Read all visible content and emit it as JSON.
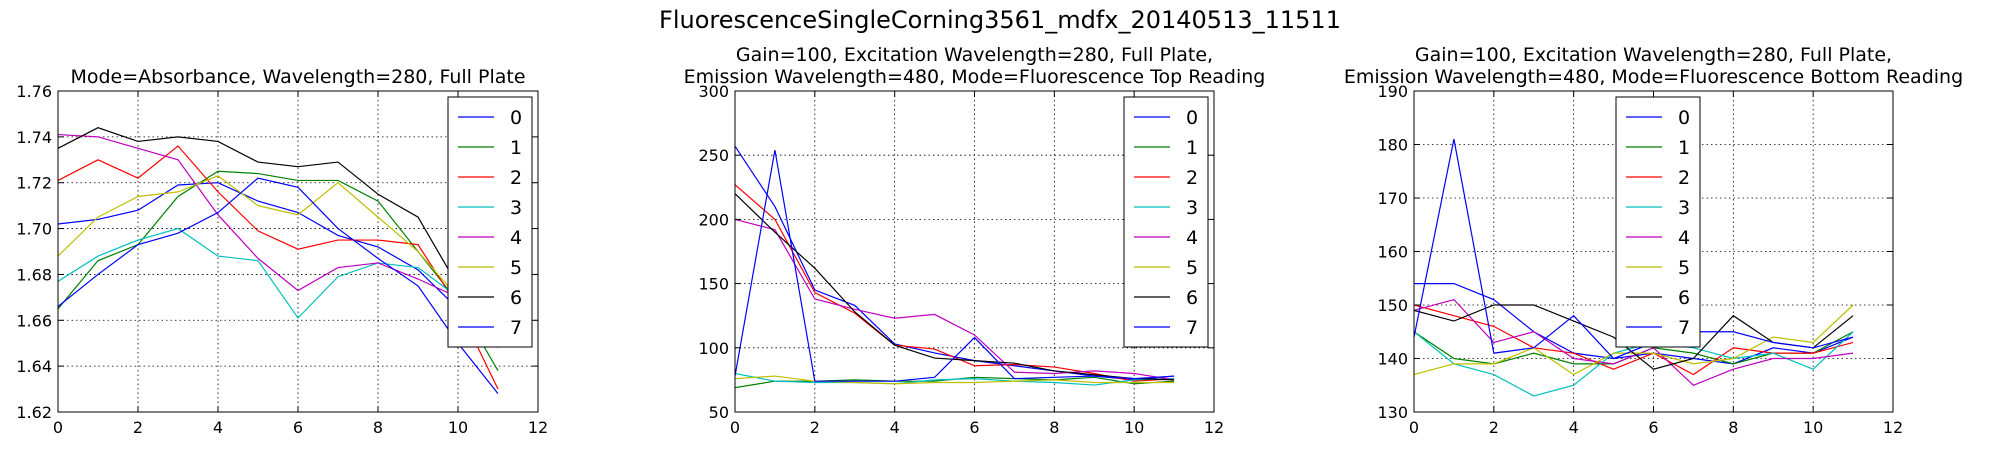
{
  "figure": {
    "title": "FluorescenceSingleCorning3561_mdfx_20140513_11511"
  },
  "series_colors": [
    "#0000ff",
    "#008000",
    "#ff0000",
    "#00bfbf",
    "#bf00bf",
    "#bfbf00",
    "#000000",
    "#0000ff"
  ],
  "chart_data": [
    {
      "type": "line",
      "title_lines": [
        "Mode=Absorbance, Wavelength=280, Full Plate"
      ],
      "xlim": [
        0,
        12
      ],
      "ylim": [
        1.62,
        1.76
      ],
      "xticks": [
        0,
        2,
        4,
        6,
        8,
        10,
        12
      ],
      "yticks": [
        1.62,
        1.64,
        1.66,
        1.68,
        1.7,
        1.72,
        1.74,
        1.76
      ],
      "ytick_labels": [
        "1.62",
        "1.64",
        "1.66",
        "1.68",
        "1.70",
        "1.72",
        "1.74",
        "1.76"
      ],
      "grid": true,
      "legend": "upper-right",
      "x": [
        0,
        1,
        2,
        3,
        4,
        5,
        6,
        7,
        8,
        9,
        10,
        11
      ],
      "series": [
        {
          "name": "0",
          "values": [
            1.702,
            1.704,
            1.708,
            1.719,
            1.72,
            1.712,
            1.707,
            1.697,
            1.692,
            1.682,
            1.665,
            1.65
          ]
        },
        {
          "name": "1",
          "values": [
            1.665,
            1.686,
            1.693,
            1.714,
            1.725,
            1.724,
            1.721,
            1.721,
            1.712,
            1.69,
            1.668,
            1.638
          ]
        },
        {
          "name": "2",
          "values": [
            1.721,
            1.73,
            1.722,
            1.736,
            1.716,
            1.699,
            1.691,
            1.695,
            1.695,
            1.693,
            1.666,
            1.63
          ]
        },
        {
          "name": "3",
          "values": [
            1.677,
            1.688,
            1.695,
            1.7,
            1.688,
            1.686,
            1.661,
            1.679,
            1.685,
            1.683,
            1.67,
            1.648
          ]
        },
        {
          "name": "4",
          "values": [
            1.741,
            1.74,
            1.735,
            1.73,
            1.706,
            1.687,
            1.673,
            1.683,
            1.685,
            1.678,
            1.67,
            1.65
          ]
        },
        {
          "name": "5",
          "values": [
            1.688,
            1.705,
            1.714,
            1.716,
            1.723,
            1.71,
            1.706,
            1.72,
            1.705,
            1.69,
            1.67,
            1.65
          ]
        },
        {
          "name": "6",
          "values": [
            1.735,
            1.744,
            1.738,
            1.74,
            1.738,
            1.729,
            1.727,
            1.729,
            1.715,
            1.705,
            1.675,
            1.65
          ]
        },
        {
          "name": "7",
          "values": [
            1.666,
            1.68,
            1.693,
            1.698,
            1.707,
            1.722,
            1.718,
            1.7,
            1.687,
            1.675,
            1.65,
            1.628
          ]
        }
      ]
    },
    {
      "type": "line",
      "title_lines": [
        "Gain=100, Excitation Wavelength=280, Full Plate,",
        "Emission Wavelength=480, Mode=Fluorescence Top Reading"
      ],
      "xlim": [
        0,
        12
      ],
      "ylim": [
        50,
        300
      ],
      "xticks": [
        0,
        2,
        4,
        6,
        8,
        10,
        12
      ],
      "yticks": [
        50,
        100,
        150,
        200,
        250,
        300
      ],
      "ytick_labels": [
        "50",
        "100",
        "150",
        "200",
        "250",
        "300"
      ],
      "grid": true,
      "legend": "upper-right",
      "x": [
        0,
        1,
        2,
        3,
        4,
        5,
        6,
        7,
        8,
        9,
        10,
        11
      ],
      "series": [
        {
          "name": "0",
          "values": [
            257,
            210,
            145,
            133,
            103,
            96,
            90,
            86,
            82,
            78,
            75,
            78
          ]
        },
        {
          "name": "1",
          "values": [
            69,
            74,
            74,
            75,
            74,
            74,
            77,
            76,
            75,
            77,
            72,
            74
          ]
        },
        {
          "name": "2",
          "values": [
            227,
            200,
            143,
            127,
            102,
            99,
            86,
            87,
            85,
            80,
            74,
            76
          ]
        },
        {
          "name": "3",
          "values": [
            80,
            74,
            73,
            73,
            72,
            75,
            76,
            74,
            73,
            71,
            75,
            76
          ]
        },
        {
          "name": "4",
          "values": [
            200,
            192,
            138,
            130,
            123,
            126,
            110,
            81,
            80,
            82,
            80,
            75
          ]
        },
        {
          "name": "5",
          "values": [
            76,
            78,
            74,
            73,
            72,
            73,
            73,
            74,
            75,
            73,
            73,
            73
          ]
        },
        {
          "name": "6",
          "values": [
            220,
            190,
            162,
            128,
            102,
            92,
            90,
            88,
            82,
            79,
            76,
            75
          ]
        },
        {
          "name": "7",
          "values": [
            78,
            254,
            74,
            74,
            74,
            77,
            108,
            76,
            77,
            78,
            76,
            78
          ]
        }
      ]
    },
    {
      "type": "line",
      "title_lines": [
        "Gain=100, Excitation Wavelength=280, Full Plate,",
        "Emission Wavelength=480, Mode=Fluorescence Bottom Reading"
      ],
      "xlim": [
        0,
        12
      ],
      "ylim": [
        130,
        190
      ],
      "xticks": [
        0,
        2,
        4,
        6,
        8,
        10,
        12
      ],
      "yticks": [
        130,
        140,
        150,
        160,
        170,
        180,
        190
      ],
      "ytick_labels": [
        "130",
        "140",
        "150",
        "160",
        "170",
        "180",
        "190"
      ],
      "grid": true,
      "legend": "upper-left",
      "x": [
        0,
        1,
        2,
        3,
        4,
        5,
        6,
        7,
        8,
        9,
        10,
        11
      ],
      "series": [
        {
          "name": "0",
          "values": [
            154,
            154,
            151,
            145,
            141,
            140,
            141,
            140,
            139,
            142,
            141,
            144
          ]
        },
        {
          "name": "1",
          "values": [
            145,
            140,
            139,
            141,
            139,
            139,
            142,
            141,
            139,
            141,
            141,
            145
          ]
        },
        {
          "name": "2",
          "values": [
            150,
            148,
            146,
            142,
            141,
            138,
            141,
            137,
            142,
            141,
            141,
            143
          ]
        },
        {
          "name": "3",
          "values": [
            145,
            139,
            137,
            133,
            135,
            141,
            143,
            142,
            140,
            141,
            138,
            145
          ]
        },
        {
          "name": "4",
          "values": [
            149,
            151,
            143,
            145,
            140,
            139,
            142,
            135,
            138,
            140,
            140,
            141
          ]
        },
        {
          "name": "5",
          "values": [
            137,
            139,
            139,
            142,
            137,
            141,
            141,
            139,
            140,
            144,
            143,
            150
          ]
        },
        {
          "name": "6",
          "values": [
            149,
            147,
            150,
            150,
            147,
            144,
            138,
            140,
            148,
            143,
            142,
            148
          ]
        },
        {
          "name": "7",
          "values": [
            144,
            181,
            141,
            142,
            148,
            140,
            143,
            145,
            145,
            143,
            142,
            144
          ]
        }
      ]
    }
  ]
}
